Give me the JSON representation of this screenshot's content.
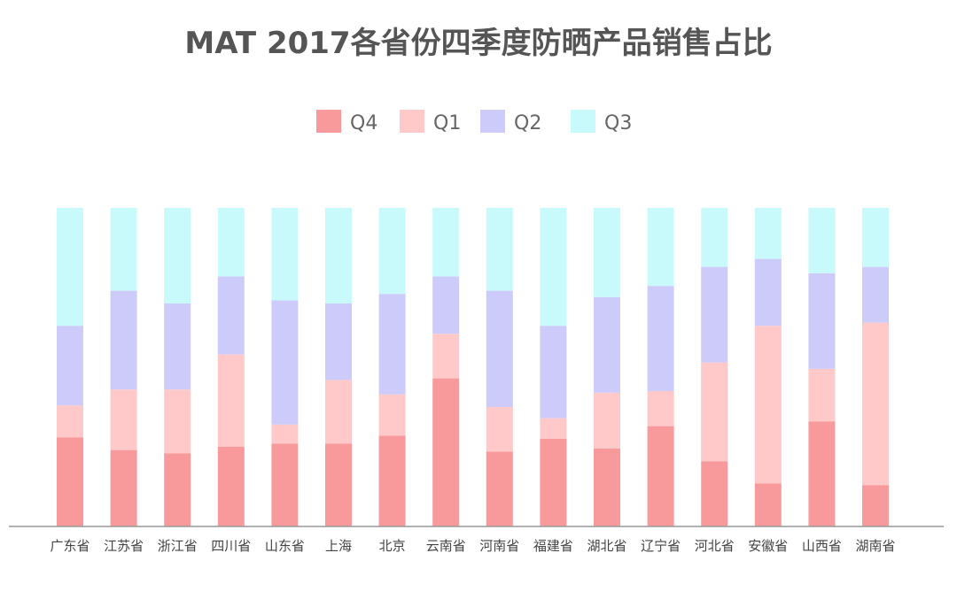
{
  "chart_data": {
    "type": "bar",
    "stacked": true,
    "normalized": true,
    "title": "MAT 2017各省份四季度防晒产品销售占比",
    "xlabel": "",
    "ylabel": "",
    "ylim": [
      0,
      1
    ],
    "grid": false,
    "legend_position": "top-center",
    "categories": [
      "广东省",
      "江苏省",
      "浙江省",
      "四川省",
      "山东省",
      "上海",
      "北京",
      "云南省",
      "河南省",
      "福建省",
      "湖北省",
      "辽宁省",
      "河北省",
      "安徽省",
      "山西省",
      "湖南省"
    ],
    "series": [
      {
        "name": "Q4",
        "color": "#f89a9b",
        "values": [
          0.28,
          0.24,
          0.23,
          0.25,
          0.26,
          0.26,
          0.285,
          0.465,
          0.235,
          0.275,
          0.245,
          0.315,
          0.205,
          0.135,
          0.33,
          0.13
        ]
      },
      {
        "name": "Q1",
        "color": "#fec9c8",
        "values": [
          0.1,
          0.19,
          0.2,
          0.29,
          0.06,
          0.2,
          0.13,
          0.14,
          0.14,
          0.065,
          0.175,
          0.11,
          0.31,
          0.495,
          0.165,
          0.51
        ]
      },
      {
        "name": "Q2",
        "color": "#cdcbf9",
        "values": [
          0.25,
          0.31,
          0.27,
          0.245,
          0.39,
          0.24,
          0.315,
          0.18,
          0.365,
          0.29,
          0.3,
          0.33,
          0.3,
          0.21,
          0.3,
          0.175
        ]
      },
      {
        "name": "Q3",
        "color": "#c8fafb",
        "values": [
          0.37,
          0.26,
          0.3,
          0.215,
          0.29,
          0.3,
          0.27,
          0.215,
          0.26,
          0.37,
          0.28,
          0.245,
          0.185,
          0.16,
          0.205,
          0.185
        ]
      }
    ],
    "legend": [
      "Q4",
      "Q1",
      "Q2",
      "Q3"
    ]
  },
  "style": {
    "title_color": "#555555",
    "legend_text_color": "#666666",
    "tick_color": "#444444",
    "axis_color": "#999999"
  }
}
